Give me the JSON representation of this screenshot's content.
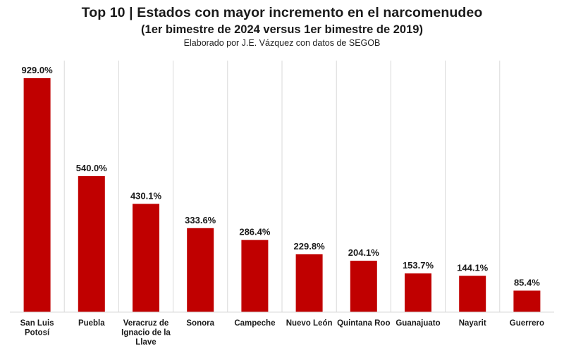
{
  "chart_data": {
    "type": "bar",
    "title": "Top 10 | Estados con mayor incremento en el narcomenudeo",
    "subtitle": "(1er bimestre de 2024 versus 1er bimestre de 2019)",
    "source": "Elaborado por J.E. Vázquez con datos de SEGOB",
    "categories": [
      "San Luis Potosí",
      "Puebla",
      "Veracruz de Ignacio de la Llave",
      "Sonora",
      "Campeche",
      "Nuevo León",
      "Quintana Roo",
      "Guanajuato",
      "Nayarit",
      "Guerrero"
    ],
    "values": [
      929.0,
      540.0,
      430.1,
      333.6,
      286.4,
      229.8,
      204.1,
      153.7,
      144.1,
      85.4
    ],
    "data_labels": [
      "929.0%",
      "540.0%",
      "430.1%",
      "333.6%",
      "286.4%",
      "229.8%",
      "204.1%",
      "153.7%",
      "144.1%",
      "85.4%"
    ],
    "ylim": [
      0,
      1000
    ],
    "bar_color": "#c00000",
    "grid": "vertical-separators",
    "legend": "none"
  }
}
